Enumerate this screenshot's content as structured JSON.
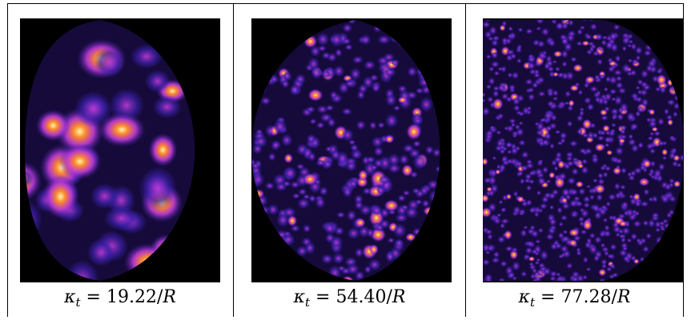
{
  "panels": [
    {
      "id": "p1",
      "image": "wave-intensity-pattern",
      "caption": {
        "symbol": "κ",
        "subscript": "t",
        "value": "= 19.22/",
        "unit": "R"
      },
      "pattern": {
        "spots": 26,
        "scale": "coarse"
      }
    },
    {
      "id": "p2",
      "image": "wave-intensity-pattern",
      "caption": {
        "symbol": "κ",
        "subscript": "t",
        "value": "= 54.40/",
        "unit": "R"
      },
      "pattern": {
        "spots": 260,
        "scale": "medium"
      }
    },
    {
      "id": "p3",
      "image": "wave-intensity-pattern",
      "caption": {
        "symbol": "κ",
        "subscript": "t",
        "value": "= 77.28/",
        "unit": "R"
      },
      "pattern": {
        "spots": 520,
        "scale": "fine"
      }
    }
  ],
  "colors": {
    "background": "#000000",
    "low": "#3a1fa8",
    "mid": "#c03bd8",
    "high": "#ff8a2a",
    "peak": "#fff8b0"
  }
}
